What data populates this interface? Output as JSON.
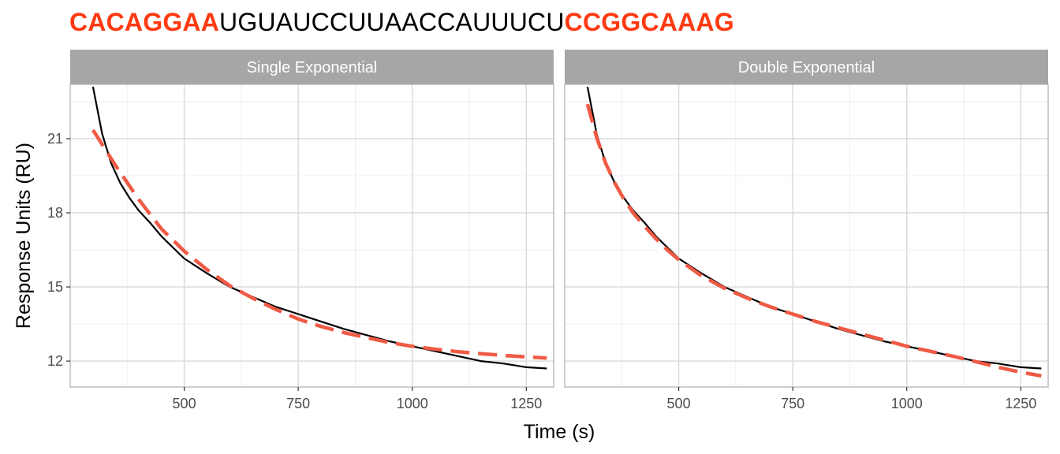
{
  "title": {
    "prefix": "CACAGGAA",
    "middle": "UGUAUCCUUAACCAUUUCU",
    "suffix": "CCGGCAAAG",
    "highlight_color": "#ff3a12"
  },
  "chart_data": [
    {
      "type": "line",
      "panel": "Single Exponential",
      "xlabel": "Time (s)",
      "ylabel": "Response Units (RU)",
      "xlim": [
        250,
        1310
      ],
      "ylim": [
        10.95,
        23.2
      ],
      "xticks": [
        500,
        750,
        1000,
        1250
      ],
      "yticks": [
        12,
        15,
        18,
        21
      ],
      "series": [
        {
          "role": "observed",
          "color": "#000000",
          "style": "solid",
          "x": [
            300,
            320,
            340,
            360,
            380,
            400,
            425,
            450,
            475,
            500,
            550,
            600,
            650,
            700,
            750,
            800,
            850,
            900,
            950,
            1000,
            1050,
            1100,
            1150,
            1200,
            1250,
            1295
          ],
          "y": [
            23.1,
            21.2,
            20.0,
            19.2,
            18.6,
            18.1,
            17.6,
            17.05,
            16.6,
            16.15,
            15.55,
            15.0,
            14.6,
            14.2,
            13.9,
            13.6,
            13.3,
            13.05,
            12.8,
            12.6,
            12.4,
            12.2,
            12.0,
            11.9,
            11.75,
            11.7
          ]
        },
        {
          "role": "fit",
          "color": "#f05a44",
          "style": "dashed",
          "x": [
            300,
            350,
            400,
            450,
            500,
            550,
            600,
            650,
            700,
            750,
            800,
            850,
            900,
            950,
            1000,
            1050,
            1100,
            1150,
            1200,
            1250,
            1295
          ],
          "y": [
            21.35,
            19.9,
            18.55,
            17.35,
            16.45,
            15.7,
            15.05,
            14.55,
            14.1,
            13.7,
            13.4,
            13.15,
            12.95,
            12.75,
            12.6,
            12.48,
            12.38,
            12.3,
            12.23,
            12.17,
            12.12
          ]
        }
      ]
    },
    {
      "type": "line",
      "panel": "Double Exponential",
      "xlabel": "Time (s)",
      "ylabel": "Response Units (RU)",
      "xlim": [
        250,
        1310
      ],
      "ylim": [
        10.95,
        23.2
      ],
      "xticks": [
        500,
        750,
        1000,
        1250
      ],
      "yticks": [
        12,
        15,
        18,
        21
      ],
      "series": [
        {
          "role": "observed",
          "color": "#000000",
          "style": "solid",
          "x": [
            300,
            320,
            340,
            360,
            380,
            400,
            425,
            450,
            475,
            500,
            550,
            600,
            650,
            700,
            750,
            800,
            850,
            900,
            950,
            1000,
            1050,
            1100,
            1150,
            1200,
            1250,
            1295
          ],
          "y": [
            23.1,
            21.2,
            20.0,
            19.2,
            18.6,
            18.1,
            17.6,
            17.05,
            16.6,
            16.15,
            15.55,
            15.0,
            14.6,
            14.2,
            13.9,
            13.6,
            13.3,
            13.05,
            12.8,
            12.6,
            12.4,
            12.2,
            12.0,
            11.9,
            11.75,
            11.7
          ]
        },
        {
          "role": "fit",
          "color": "#f05a44",
          "style": "dashed",
          "x": [
            300,
            320,
            340,
            360,
            380,
            400,
            425,
            450,
            475,
            500,
            550,
            600,
            650,
            700,
            750,
            800,
            850,
            900,
            950,
            1000,
            1050,
            1100,
            1150,
            1200,
            1250,
            1295
          ],
          "y": [
            22.4,
            21.05,
            20.0,
            19.2,
            18.55,
            18.0,
            17.45,
            16.95,
            16.5,
            16.1,
            15.45,
            14.95,
            14.55,
            14.2,
            13.9,
            13.6,
            13.35,
            13.1,
            12.85,
            12.6,
            12.4,
            12.2,
            11.98,
            11.75,
            11.55,
            11.4
          ]
        }
      ]
    }
  ]
}
